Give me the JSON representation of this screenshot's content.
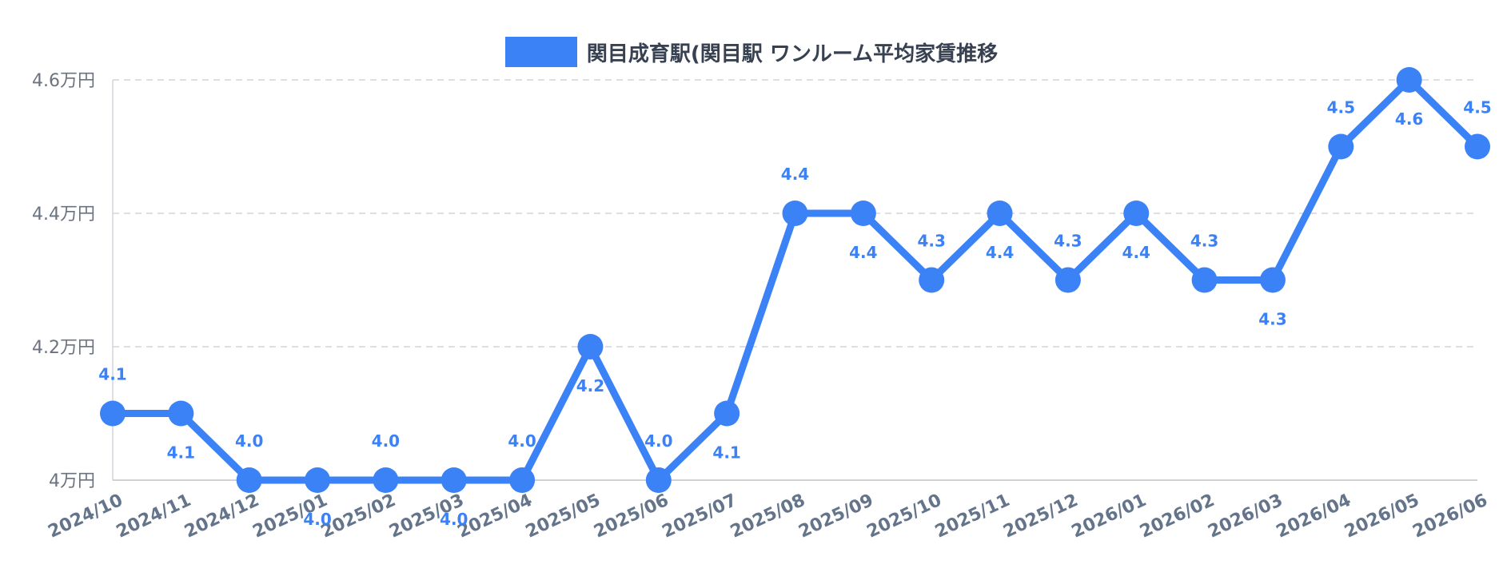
{
  "chart_data": {
    "type": "line",
    "title": "",
    "xlabel": "",
    "ylabel": "",
    "categories": [
      "2024/10",
      "2024/11",
      "2024/12",
      "2025/01",
      "2025/02",
      "2025/03",
      "2025/04",
      "2025/05",
      "2025/06",
      "2025/07",
      "2025/08",
      "2025/09",
      "2025/10",
      "2025/11",
      "2025/12",
      "2026/01",
      "2026/02",
      "2026/03",
      "2026/04",
      "2026/05",
      "2026/06"
    ],
    "series": [
      {
        "name": "関目成育駅(関目駅 ワンルーム平均家賃推移",
        "values": [
          4.1,
          4.1,
          4.0,
          4.0,
          4.0,
          4.0,
          4.0,
          4.2,
          4.0,
          4.1,
          4.4,
          4.4,
          4.3,
          4.4,
          4.3,
          4.4,
          4.3,
          4.3,
          4.5,
          4.6,
          4.5
        ]
      }
    ],
    "data_labels": [
      "4.1",
      "4.1",
      "4.0",
      "4.0",
      "4.0",
      "4.0",
      "4.0",
      "4.2",
      "4.0",
      "4.1",
      "4.4",
      "4.4",
      "4.3",
      "4.4",
      "4.3",
      "4.4",
      "4.3",
      "4.3",
      "4.5",
      "4.6",
      "4.5"
    ],
    "label_above": [
      true,
      false,
      true,
      false,
      true,
      false,
      true,
      false,
      true,
      false,
      true,
      false,
      true,
      false,
      true,
      false,
      true,
      false,
      true,
      false,
      true
    ],
    "ylim": [
      4.0,
      4.6
    ],
    "yticks": [
      4.0,
      4.2,
      4.4,
      4.6
    ],
    "ytick_labels": [
      "4万円",
      "4.2万円",
      "4.4万円",
      "4.6万円"
    ],
    "grid": true,
    "legend_position": "top-center",
    "colors": {
      "series": "#3b82f6",
      "grid": "#d1d5db",
      "axis_text": "#6b7280",
      "x_tick_text": "#64748b",
      "legend_text": "#374151"
    }
  }
}
